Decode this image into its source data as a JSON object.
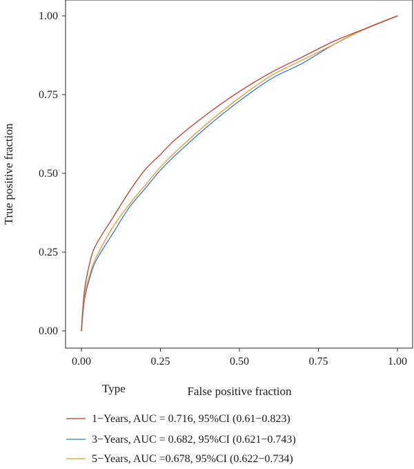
{
  "chart_data": {
    "type": "line",
    "xlabel": "False positive fraction",
    "ylabel": "True positive fraction",
    "xlim": [
      0,
      1
    ],
    "ylim": [
      0,
      1
    ],
    "xticks": [
      "0.00",
      "0.25",
      "0.50",
      "0.75",
      "1.00"
    ],
    "yticks": [
      "0.00",
      "0.25",
      "0.50",
      "0.75",
      "1.00"
    ],
    "grid": false,
    "legend": {
      "title": "Type",
      "position": "bottom"
    },
    "series": [
      {
        "name": "1−Years, AUC = 0.716, 95%CI (0.61−0.823)",
        "color": "#c0392b",
        "x": [
          0,
          0.01,
          0.03,
          0.05,
          0.1,
          0.15,
          0.2,
          0.25,
          0.3,
          0.4,
          0.5,
          0.6,
          0.7,
          0.8,
          0.9,
          1.0
        ],
        "y": [
          0,
          0.13,
          0.23,
          0.28,
          0.36,
          0.44,
          0.51,
          0.56,
          0.61,
          0.69,
          0.76,
          0.82,
          0.87,
          0.92,
          0.96,
          1.0
        ]
      },
      {
        "name": "3−Years, AUC = 0.682, 95%CI (0.621−0.743)",
        "color": "#2e7bbf",
        "x": [
          0,
          0.01,
          0.03,
          0.05,
          0.1,
          0.15,
          0.2,
          0.25,
          0.3,
          0.4,
          0.5,
          0.6,
          0.7,
          0.8,
          0.9,
          1.0
        ],
        "y": [
          0,
          0.1,
          0.18,
          0.23,
          0.31,
          0.39,
          0.45,
          0.51,
          0.56,
          0.65,
          0.73,
          0.8,
          0.85,
          0.91,
          0.96,
          1.0
        ]
      },
      {
        "name": "5−Years, AUC =0.678, 95%CI (0.622−0.734)",
        "color": "#e8962e",
        "x": [
          0,
          0.01,
          0.03,
          0.05,
          0.1,
          0.15,
          0.2,
          0.25,
          0.3,
          0.4,
          0.5,
          0.6,
          0.7,
          0.8,
          0.9,
          1.0
        ],
        "y": [
          0,
          0.11,
          0.19,
          0.24,
          0.33,
          0.4,
          0.46,
          0.52,
          0.57,
          0.66,
          0.74,
          0.81,
          0.86,
          0.91,
          0.96,
          1.0
        ]
      }
    ]
  }
}
